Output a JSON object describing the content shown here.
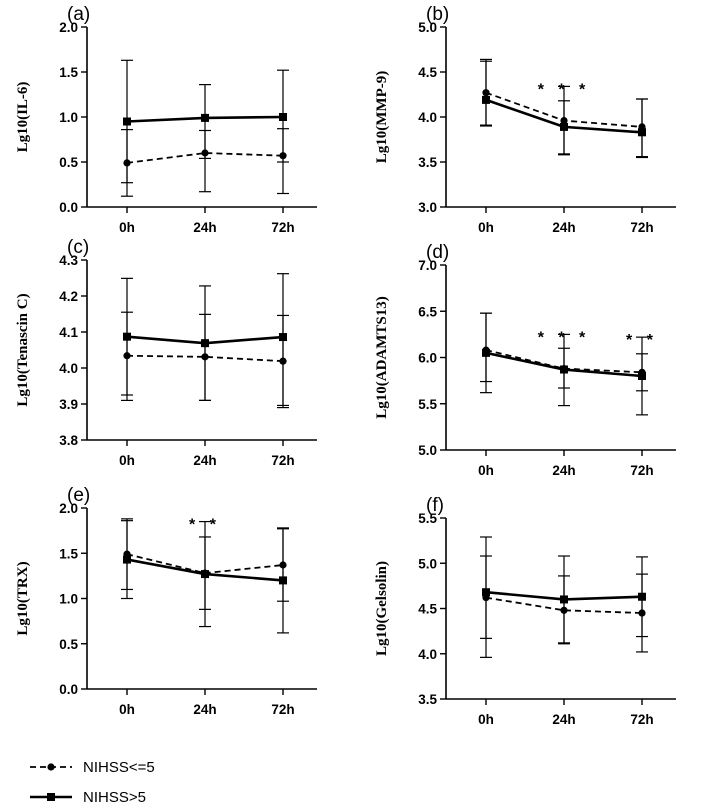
{
  "chart_data": [
    {
      "type": "line",
      "panel": "(a)",
      "ylabel": "Lg10(IL-6)",
      "ylim": [
        0.0,
        2.0
      ],
      "yticks": [
        "0.0",
        "0.5",
        "1.0",
        "1.5",
        "2.0"
      ],
      "categories": [
        "0h",
        "24h",
        "72h"
      ],
      "significance": [
        "",
        "",
        ""
      ],
      "series": [
        {
          "name": "NIHSS<=5",
          "values": [
            0.49,
            0.6,
            0.57
          ],
          "err_up": [
            0.37,
            0.25,
            0.3
          ],
          "err_down": [
            0.37,
            0.43,
            0.42
          ]
        },
        {
          "name": "NIHSS>5",
          "values": [
            0.95,
            0.99,
            1.0
          ],
          "err_up": [
            0.68,
            0.37,
            0.52
          ],
          "err_down": [
            0.68,
            0.45,
            0.5
          ]
        }
      ]
    },
    {
      "type": "line",
      "panel": "(b)",
      "ylabel": "Lg10(MMP-9)",
      "ylim": [
        3.0,
        5.0
      ],
      "yticks": [
        "3.0",
        "3.5",
        "4.0",
        "4.5",
        "5.0"
      ],
      "categories": [
        "0h",
        "24h",
        "72h"
      ],
      "significance": [
        "",
        "* * *",
        ""
      ],
      "series": [
        {
          "name": "NIHSS<=5",
          "values": [
            4.27,
            3.96,
            3.89
          ],
          "err_up": [
            0.35,
            0.22,
            0.31
          ],
          "err_down": [
            0.37,
            0.37,
            0.34
          ]
        },
        {
          "name": "NIHSS>5",
          "values": [
            4.19,
            3.89,
            3.83
          ],
          "err_up": [
            0.45,
            0.45,
            0.37
          ],
          "err_down": [
            0.28,
            0.31,
            0.27
          ]
        }
      ]
    },
    {
      "type": "line",
      "panel": "(c)",
      "ylabel": "Lg10(Tenascin C)",
      "ylim": [
        3.8,
        4.3
      ],
      "yticks": [
        "3.8",
        "3.9",
        "4.0",
        "4.1",
        "4.2",
        "4.3"
      ],
      "categories": [
        "0h",
        "24h",
        "72h"
      ],
      "significance": [
        "",
        "",
        ""
      ],
      "series": [
        {
          "name": "NIHSS<=5",
          "values": [
            4.034,
            4.031,
            4.019
          ],
          "err_up": [
            0.121,
            0.118,
            0.127
          ],
          "err_down": [
            0.124,
            0.121,
            0.129
          ]
        },
        {
          "name": "NIHSS>5",
          "values": [
            4.087,
            4.069,
            4.086
          ],
          "err_up": [
            0.162,
            0.159,
            0.176
          ],
          "err_down": [
            0.162,
            0.159,
            0.19
          ]
        }
      ]
    },
    {
      "type": "line",
      "panel": "(d)",
      "ylabel": "Lg10(ADAMTS13)",
      "ylim": [
        5.0,
        7.0
      ],
      "yticks": [
        "5.0",
        "5.5",
        "6.0",
        "6.5",
        "7.0"
      ],
      "categories": [
        "0h",
        "24h",
        "72h"
      ],
      "significance": [
        "",
        "* * *",
        "* *"
      ],
      "series": [
        {
          "name": "NIHSS<=5",
          "values": [
            6.08,
            5.88,
            5.84
          ],
          "err_up": [
            0.4,
            0.22,
            0.2
          ],
          "err_down": [
            0.34,
            0.21,
            0.2
          ]
        },
        {
          "name": "NIHSS>5",
          "values": [
            6.05,
            5.87,
            5.8
          ],
          "err_up": [
            0.43,
            0.38,
            0.42
          ],
          "err_down": [
            0.43,
            0.39,
            0.42
          ]
        }
      ]
    },
    {
      "type": "line",
      "panel": "(e)",
      "ylabel": "Lg10(TRX)",
      "ylim": [
        0.0,
        2.0
      ],
      "yticks": [
        "0.0",
        "0.5",
        "1.0",
        "1.5",
        "2.0"
      ],
      "categories": [
        "0h",
        "24h",
        "72h"
      ],
      "significance": [
        "",
        "* *",
        ""
      ],
      "series": [
        {
          "name": "NIHSS<=5",
          "values": [
            1.49,
            1.28,
            1.37
          ],
          "err_up": [
            0.39,
            0.4,
            0.4
          ],
          "err_down": [
            0.39,
            0.4,
            0.4
          ]
        },
        {
          "name": "NIHSS>5",
          "values": [
            1.43,
            1.27,
            1.2
          ],
          "err_up": [
            0.43,
            0.58,
            0.58
          ],
          "err_down": [
            0.43,
            0.58,
            0.58
          ]
        }
      ]
    },
    {
      "type": "line",
      "panel": "(f)",
      "ylabel": "Lg10(Gelsolin)",
      "ylim": [
        3.5,
        5.5
      ],
      "yticks": [
        "3.5",
        "4.0",
        "4.5",
        "5.0",
        "5.5"
      ],
      "categories": [
        "0h",
        "24h",
        "72h"
      ],
      "significance": [
        "",
        "",
        ""
      ],
      "series": [
        {
          "name": "NIHSS<=5",
          "values": [
            4.62,
            4.48,
            4.45
          ],
          "err_up": [
            0.46,
            0.38,
            0.43
          ],
          "err_down": [
            0.45,
            0.37,
            0.43
          ]
        },
        {
          "name": "NIHSS>5",
          "values": [
            4.68,
            4.6,
            4.63
          ],
          "err_up": [
            0.61,
            0.48,
            0.44
          ],
          "err_down": [
            0.72,
            0.48,
            0.44
          ]
        }
      ]
    }
  ],
  "legend": [
    {
      "label": "NIHSS<=5",
      "style": "dashed",
      "marker": "circle"
    },
    {
      "label": "NIHSS>5",
      "style": "solid",
      "marker": "square"
    }
  ]
}
